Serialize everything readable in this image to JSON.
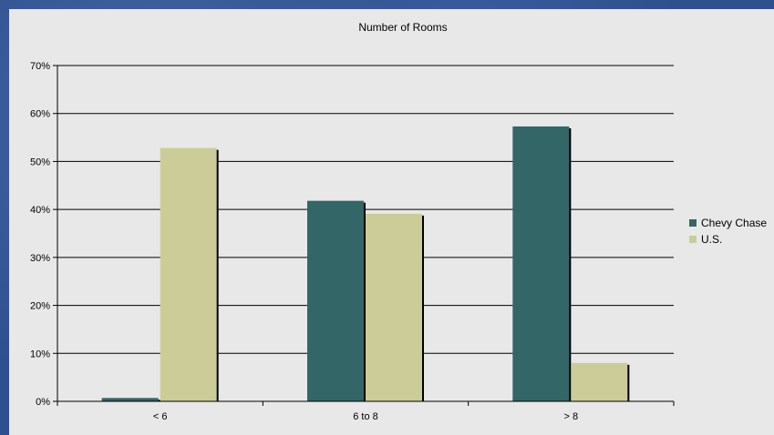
{
  "chart_data": {
    "type": "bar",
    "title": "Number of Rooms",
    "xlabel": "",
    "ylabel": "",
    "categories": [
      "< 6",
      "6 to 8",
      "> 8"
    ],
    "series": [
      {
        "name": "Chevy Chase",
        "values": [
          0.7,
          41.8,
          57.3
        ],
        "color": "#336666"
      },
      {
        "name": "U.S.",
        "values": [
          52.8,
          39.1,
          8.0
        ],
        "color": "#cccc99"
      }
    ],
    "ylim": [
      0,
      70
    ],
    "yticks": [
      "0%",
      "10%",
      "20%",
      "30%",
      "40%",
      "50%",
      "60%",
      "70%"
    ],
    "grid": true,
    "legend": "right"
  },
  "colors": {
    "plot_background": "#e8e8e8",
    "gridline": "#000000",
    "bar_shadow": "#000000"
  }
}
